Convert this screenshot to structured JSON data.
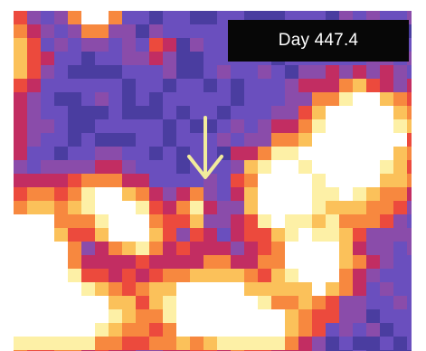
{
  "overlay": {
    "day_label": "Day 447.4"
  },
  "colors": {
    "frame": "#ffffff",
    "label_background": "#070707",
    "label_text": "#ffffff",
    "arrow": "#f2ec9c",
    "colormap": [
      "#0f0b2e",
      "#2b2168",
      "#4a3da0",
      "#6a4fbe",
      "#8a4caa",
      "#c22d62",
      "#ec4a3d",
      "#f7883f",
      "#fbc15a",
      "#fdf0a6",
      "#ffffff"
    ]
  },
  "icons": {
    "pointer": "down-arrow-icon"
  }
}
